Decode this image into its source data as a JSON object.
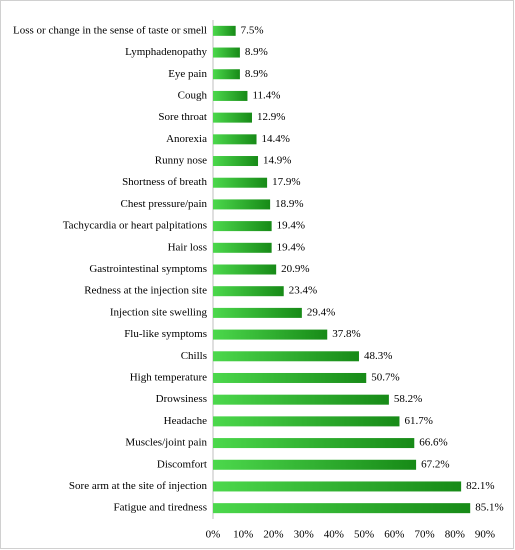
{
  "chart_data": {
    "type": "bar",
    "orientation": "horizontal",
    "categories": [
      "Loss or change in the sense of taste or smell",
      "Lymphadenopathy",
      "Eye pain",
      "Cough",
      "Sore throat",
      "Anorexia",
      "Runny nose",
      "Shortness of breath",
      "Chest pressure/pain",
      "Tachycardia or heart palpitations",
      "Hair loss",
      "Gastrointestinal symptoms",
      "Redness at the injection site",
      "Injection site swelling",
      "Flu-like symptoms",
      "Chills",
      "High temperature",
      "Drowsiness",
      "Headache",
      "Muscles/joint pain",
      "Discomfort",
      "Sore arm at the site of injection",
      "Fatigue and tiredness"
    ],
    "values": [
      7.5,
      8.9,
      8.9,
      11.4,
      12.9,
      14.4,
      14.9,
      17.9,
      18.9,
      19.4,
      19.4,
      20.9,
      23.4,
      29.4,
      37.8,
      48.3,
      50.7,
      58.2,
      61.7,
      66.6,
      67.2,
      82.1,
      85.1
    ],
    "value_labels": [
      "7.5%",
      "8.9%",
      "8.9%",
      "11.4%",
      "12.9%",
      "14.4%",
      "14.9%",
      "17.9%",
      "18.9%",
      "19.4%",
      "19.4%",
      "20.9%",
      "23.4%",
      "29.4%",
      "37.8%",
      "48.3%",
      "50.7%",
      "58.2%",
      "61.7%",
      "66.6%",
      "67.2%",
      "82.1%",
      "85.1%"
    ],
    "colors": [
      "#4cd84c",
      "#178a17"
    ],
    "xlim": [
      0,
      90
    ],
    "xticks": [
      {
        "value": 0,
        "label": "0%"
      },
      {
        "value": 10,
        "label": "10%"
      },
      {
        "value": 20,
        "label": "20%"
      },
      {
        "value": 30,
        "label": "30%"
      },
      {
        "value": 40,
        "label": "40%"
      },
      {
        "value": 50,
        "label": "50%"
      },
      {
        "value": 60,
        "label": "60%"
      },
      {
        "value": 70,
        "label": "70%"
      },
      {
        "value": 80,
        "label": "80%"
      },
      {
        "value": 90,
        "label": "90%"
      }
    ],
    "grid": false
  }
}
